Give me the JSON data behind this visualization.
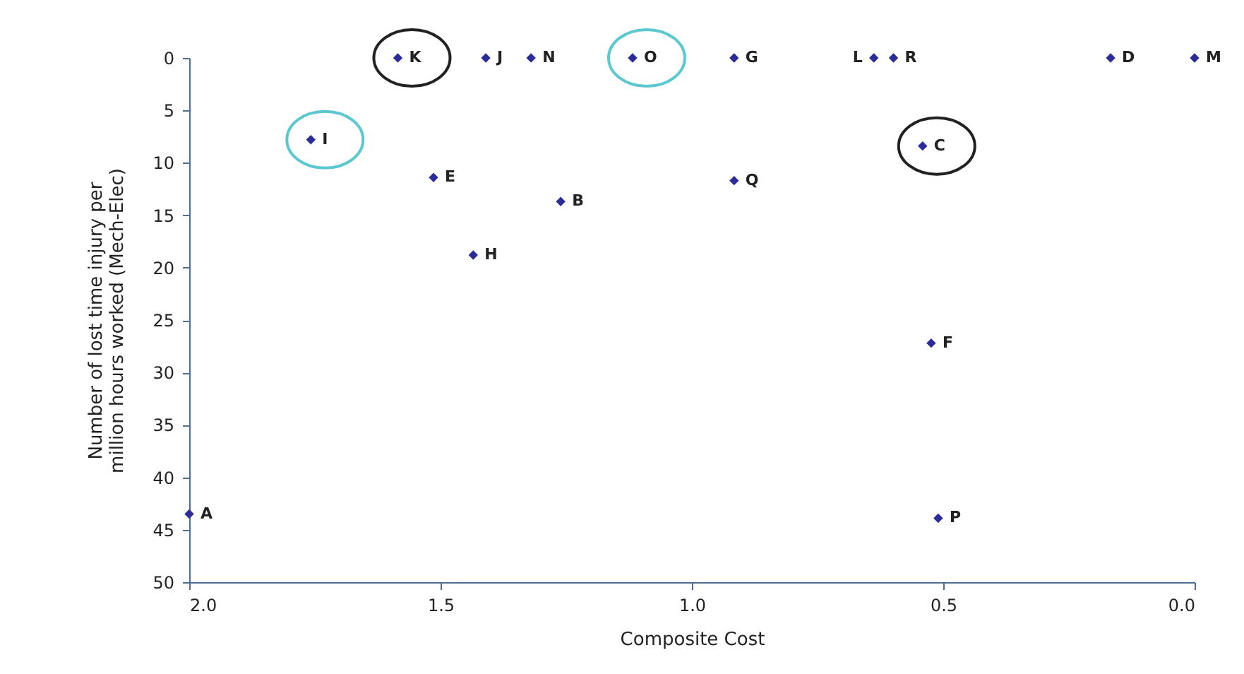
{
  "chart_data": {
    "type": "scatter",
    "xlabel": "Composite Cost",
    "ylabel": "Number of lost time injury per million hours worked (Mech-Elec)",
    "x": [
      1.585,
      1.41,
      1.32,
      1.118,
      0.916,
      0.638,
      0.599,
      0.167,
      0.0,
      1.758,
      0.541,
      1.514,
      0.916,
      1.261,
      1.435,
      0.524,
      2.0,
      0.51
    ],
    "series": [
      {
        "color": "#2b2b9a",
        "values": [
          0,
          0,
          0,
          0,
          0,
          0,
          0,
          0,
          0,
          7.8,
          8.4,
          11.4,
          11.7,
          13.7,
          18.8,
          27.2,
          43.5,
          43.9
        ],
        "value_labels": [
          "K",
          "J",
          "N",
          "O",
          "G",
          "L",
          "R",
          "D",
          "M",
          "I",
          "C",
          "E",
          "Q",
          "B",
          "H",
          "F",
          "A",
          "P"
        ]
      }
    ],
    "xlim": [
      2.0,
      0.0
    ],
    "xticks": [
      {
        "value": 2.0,
        "label": "2.0"
      },
      1.5,
      {
        "value": 1.0,
        "label": "1.0"
      },
      0.5,
      {
        "value": 0.0,
        "label": "0.0"
      }
    ],
    "ylim": [
      50,
      0
    ],
    "yticks": [
      0,
      5,
      10,
      15,
      20,
      25,
      30,
      35,
      40,
      45,
      50
    ],
    "marker": "diamond",
    "grid": false,
    "legend": false
  }
}
